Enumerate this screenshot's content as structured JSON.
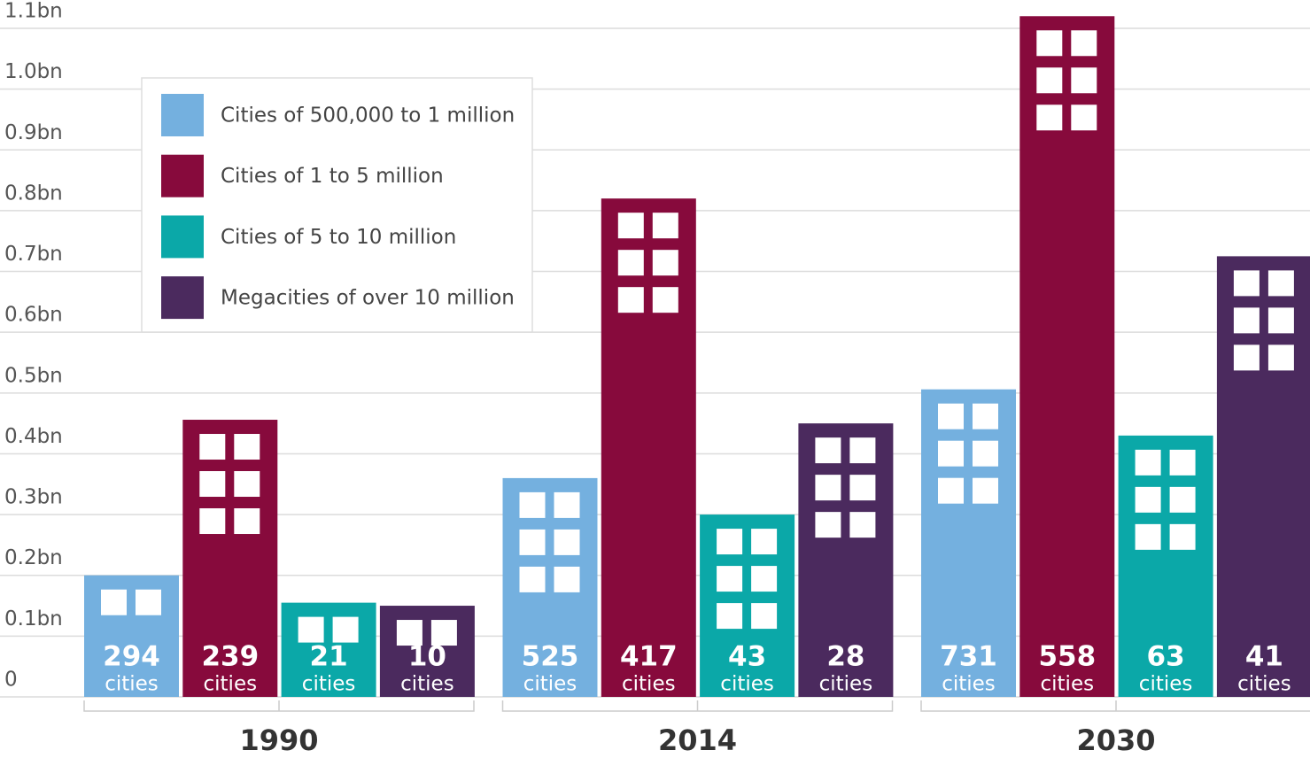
{
  "chart_data": {
    "type": "bar",
    "categories": [
      "1990",
      "2014",
      "2030"
    ],
    "series": [
      {
        "name": "Cities of 500,000 to 1 million",
        "color": "#74b0df",
        "values": [
          0.2,
          0.36,
          0.506
        ],
        "city_counts": [
          "294",
          "525",
          "731"
        ]
      },
      {
        "name": "Cities of 1 to 5 million",
        "color": "#870a3c",
        "values": [
          0.456,
          0.82,
          1.12
        ],
        "city_counts": [
          "239",
          "417",
          "558"
        ]
      },
      {
        "name": "Cities of 5 to 10 million",
        "color": "#0ba8a8",
        "values": [
          0.155,
          0.3,
          0.43
        ],
        "city_counts": [
          "21",
          "43",
          "63"
        ]
      },
      {
        "name": "Megacities of over 10 million",
        "color": "#4b2a5e",
        "values": [
          0.15,
          0.45,
          0.725
        ],
        "city_counts": [
          "10",
          "28",
          "41"
        ]
      }
    ],
    "count_unit": "cities",
    "ylim": [
      0,
      1.1
    ],
    "yticks": [
      0,
      {
        "value": 0.1,
        "label": "0.1bn"
      },
      {
        "value": 0.2,
        "label": "0.2bn"
      },
      {
        "value": 0.3,
        "label": "0.3bn"
      },
      {
        "value": 0.4,
        "label": "0.4bn"
      },
      {
        "value": 0.5,
        "label": "0.5bn"
      },
      {
        "value": 0.6,
        "label": "0.6bn"
      },
      {
        "value": 0.7,
        "label": "0.7bn"
      },
      {
        "value": 0.8,
        "label": "0.8bn"
      },
      {
        "value": 0.9,
        "label": "0.9bn"
      },
      {
        "value": 1.0,
        "label": "1.0bn"
      },
      {
        "value": 1.1,
        "label": "1.1bn"
      }
    ],
    "grid": true,
    "legend": "upper left"
  }
}
